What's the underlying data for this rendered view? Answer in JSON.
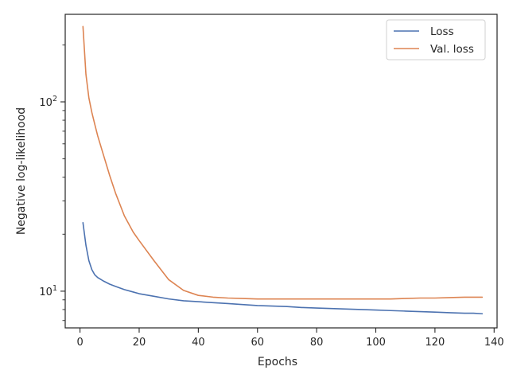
{
  "chart_data": {
    "type": "line",
    "xlabel": "Epochs",
    "ylabel": "Negative log-likelihood",
    "yscale": "log",
    "xlim": [
      -5,
      141
    ],
    "ylim": [
      6.4,
      290
    ],
    "xticks": [
      0,
      20,
      40,
      60,
      80,
      100,
      120,
      140
    ],
    "xtick_labels": [
      "0",
      "20",
      "40",
      "60",
      "80",
      "100",
      "120",
      "140"
    ],
    "yticks_major": [
      10,
      100
    ],
    "ytick_labels": [
      "10^1",
      "10^2"
    ],
    "yticks_minor": [
      7,
      8,
      9,
      20,
      30,
      40,
      50,
      60,
      70,
      80,
      90,
      200
    ],
    "grid": false,
    "legend": "top-right",
    "x": [
      1,
      2,
      3,
      4,
      5,
      6,
      8,
      10,
      12,
      15,
      18,
      20,
      25,
      30,
      35,
      40,
      45,
      50,
      55,
      60,
      65,
      70,
      75,
      80,
      85,
      90,
      95,
      100,
      105,
      110,
      115,
      120,
      125,
      130,
      133,
      136
    ],
    "series": [
      {
        "name": "Loss",
        "color": "#4c72b0",
        "values": [
          23,
          17.5,
          14.5,
          13,
          12.2,
          11.8,
          11.3,
          10.9,
          10.6,
          10.2,
          9.9,
          9.7,
          9.4,
          9.1,
          8.9,
          8.8,
          8.7,
          8.6,
          8.5,
          8.4,
          8.35,
          8.3,
          8.2,
          8.15,
          8.1,
          8.05,
          8.0,
          7.95,
          7.9,
          7.85,
          7.8,
          7.75,
          7.7,
          7.65,
          7.65,
          7.6
        ]
      },
      {
        "name": "Val. loss",
        "color": "#dd8452",
        "values": [
          250,
          140,
          105,
          88,
          76,
          66,
          52,
          41,
          33,
          25,
          20.5,
          18.5,
          14.5,
          11.5,
          10.1,
          9.5,
          9.3,
          9.2,
          9.15,
          9.1,
          9.1,
          9.1,
          9.1,
          9.1,
          9.1,
          9.1,
          9.1,
          9.1,
          9.1,
          9.15,
          9.2,
          9.2,
          9.25,
          9.3,
          9.3,
          9.3
        ]
      }
    ]
  }
}
